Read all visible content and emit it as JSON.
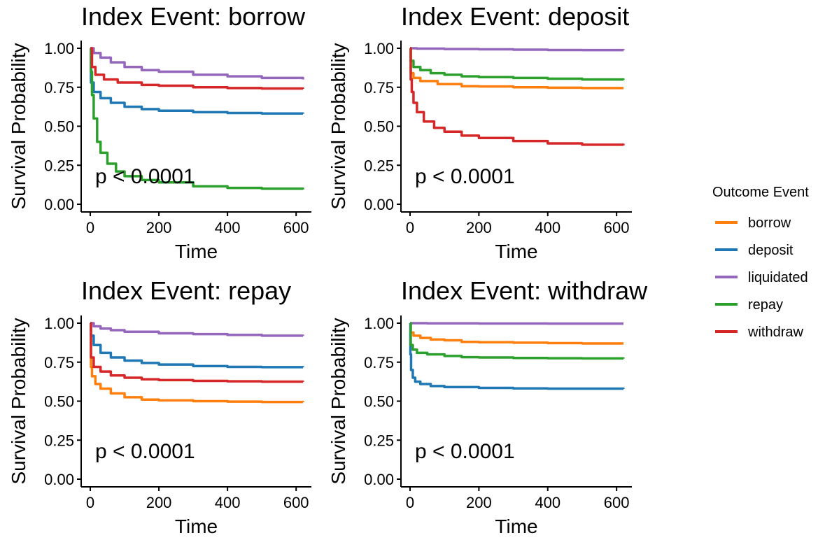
{
  "legend": {
    "title": "Outcome Event",
    "position": "right",
    "items": [
      {
        "label": "borrow",
        "color": "#FF7F0E"
      },
      {
        "label": "deposit",
        "color": "#1F77B4"
      },
      {
        "label": "liquidated",
        "color": "#9467BD"
      },
      {
        "label": "repay",
        "color": "#2CA02C"
      },
      {
        "label": "withdraw",
        "color": "#D62728"
      }
    ]
  },
  "chart_data": [
    {
      "type": "line",
      "title": "Index Event:  borrow",
      "xlabel": "Time",
      "ylabel": "Survival Probability",
      "xlim": [
        0,
        620
      ],
      "ylim": [
        0,
        1
      ],
      "xticks": [
        0,
        200,
        400,
        600
      ],
      "yticks": [
        "0.00",
        "0.25",
        "0.50",
        "0.75",
        "1.00"
      ],
      "annotation": "p < 0.0001",
      "grid": false,
      "series": [
        {
          "name": "deposit",
          "color": "#1F77B4",
          "points": [
            [
              0,
              1.0
            ],
            [
              2,
              0.78
            ],
            [
              10,
              0.72
            ],
            [
              30,
              0.68
            ],
            [
              60,
              0.65
            ],
            [
              100,
              0.625
            ],
            [
              150,
              0.61
            ],
            [
              200,
              0.6
            ],
            [
              300,
              0.59
            ],
            [
              400,
              0.585
            ],
            [
              500,
              0.582
            ],
            [
              620,
              0.58
            ]
          ]
        },
        {
          "name": "liquidated",
          "color": "#9467BD",
          "points": [
            [
              0,
              1.0
            ],
            [
              10,
              0.97
            ],
            [
              30,
              0.94
            ],
            [
              60,
              0.91
            ],
            [
              100,
              0.88
            ],
            [
              150,
              0.86
            ],
            [
              200,
              0.85
            ],
            [
              300,
              0.83
            ],
            [
              400,
              0.82
            ],
            [
              500,
              0.81
            ],
            [
              620,
              0.8
            ]
          ]
        },
        {
          "name": "repay",
          "color": "#2CA02C",
          "points": [
            [
              0,
              1.0
            ],
            [
              2,
              0.85
            ],
            [
              5,
              0.7
            ],
            [
              10,
              0.55
            ],
            [
              20,
              0.4
            ],
            [
              30,
              0.33
            ],
            [
              50,
              0.26
            ],
            [
              75,
              0.21
            ],
            [
              100,
              0.18
            ],
            [
              150,
              0.155
            ],
            [
              200,
              0.14
            ],
            [
              300,
              0.115
            ],
            [
              400,
              0.105
            ],
            [
              500,
              0.1
            ],
            [
              620,
              0.095
            ]
          ]
        },
        {
          "name": "withdraw",
          "color": "#D62728",
          "points": [
            [
              0,
              1.0
            ],
            [
              5,
              0.88
            ],
            [
              15,
              0.83
            ],
            [
              40,
              0.8
            ],
            [
              80,
              0.78
            ],
            [
              150,
              0.765
            ],
            [
              200,
              0.76
            ],
            [
              300,
              0.75
            ],
            [
              400,
              0.745
            ],
            [
              500,
              0.742
            ],
            [
              620,
              0.74
            ]
          ]
        }
      ]
    },
    {
      "type": "line",
      "title": "Index Event:  deposit",
      "xlabel": "Time",
      "ylabel": "Survival Probability",
      "xlim": [
        0,
        620
      ],
      "ylim": [
        0,
        1
      ],
      "xticks": [
        0,
        200,
        400,
        600
      ],
      "yticks": [
        "0.00",
        "0.25",
        "0.50",
        "0.75",
        "1.00"
      ],
      "annotation": "p < 0.0001",
      "grid": false,
      "series": [
        {
          "name": "borrow",
          "color": "#FF7F0E",
          "points": [
            [
              0,
              1.0
            ],
            [
              2,
              0.84
            ],
            [
              10,
              0.81
            ],
            [
              30,
              0.79
            ],
            [
              80,
              0.77
            ],
            [
              150,
              0.757
            ],
            [
              200,
              0.755
            ],
            [
              300,
              0.75
            ],
            [
              400,
              0.747
            ],
            [
              500,
              0.745
            ],
            [
              620,
              0.745
            ]
          ]
        },
        {
          "name": "liquidated",
          "color": "#9467BD",
          "points": [
            [
              0,
              1.0
            ],
            [
              20,
              0.998
            ],
            [
              100,
              0.995
            ],
            [
              200,
              0.993
            ],
            [
              300,
              0.991
            ],
            [
              400,
              0.989
            ],
            [
              500,
              0.988
            ],
            [
              620,
              0.987
            ]
          ]
        },
        {
          "name": "repay",
          "color": "#2CA02C",
          "points": [
            [
              0,
              1.0
            ],
            [
              2,
              0.92
            ],
            [
              10,
              0.88
            ],
            [
              30,
              0.86
            ],
            [
              60,
              0.84
            ],
            [
              100,
              0.83
            ],
            [
              150,
              0.82
            ],
            [
              200,
              0.815
            ],
            [
              300,
              0.81
            ],
            [
              400,
              0.805
            ],
            [
              500,
              0.8
            ],
            [
              620,
              0.797
            ]
          ]
        },
        {
          "name": "withdraw",
          "color": "#D62728",
          "points": [
            [
              0,
              1.0
            ],
            [
              2,
              0.8
            ],
            [
              5,
              0.72
            ],
            [
              10,
              0.65
            ],
            [
              20,
              0.59
            ],
            [
              40,
              0.53
            ],
            [
              70,
              0.49
            ],
            [
              100,
              0.465
            ],
            [
              150,
              0.44
            ],
            [
              200,
              0.425
            ],
            [
              300,
              0.405
            ],
            [
              400,
              0.39
            ],
            [
              500,
              0.382
            ],
            [
              620,
              0.378
            ]
          ]
        }
      ]
    },
    {
      "type": "line",
      "title": "Index Event:  repay",
      "xlabel": "Time",
      "ylabel": "Survival Probability",
      "xlim": [
        0,
        620
      ],
      "ylim": [
        0,
        1
      ],
      "xticks": [
        0,
        200,
        400,
        600
      ],
      "yticks": [
        "0.00",
        "0.25",
        "0.50",
        "0.75",
        "1.00"
      ],
      "annotation": "p < 0.0001",
      "grid": false,
      "series": [
        {
          "name": "borrow",
          "color": "#FF7F0E",
          "points": [
            [
              0,
              1.0
            ],
            [
              2,
              0.72
            ],
            [
              5,
              0.66
            ],
            [
              15,
              0.61
            ],
            [
              30,
              0.58
            ],
            [
              60,
              0.55
            ],
            [
              100,
              0.525
            ],
            [
              150,
              0.51
            ],
            [
              200,
              0.505
            ],
            [
              300,
              0.5
            ],
            [
              400,
              0.497
            ],
            [
              500,
              0.495
            ],
            [
              620,
              0.493
            ]
          ]
        },
        {
          "name": "deposit",
          "color": "#1F77B4",
          "points": [
            [
              0,
              1.0
            ],
            [
              2,
              0.92
            ],
            [
              10,
              0.86
            ],
            [
              30,
              0.81
            ],
            [
              60,
              0.78
            ],
            [
              100,
              0.76
            ],
            [
              150,
              0.745
            ],
            [
              200,
              0.735
            ],
            [
              300,
              0.725
            ],
            [
              400,
              0.72
            ],
            [
              500,
              0.718
            ],
            [
              620,
              0.717
            ]
          ]
        },
        {
          "name": "liquidated",
          "color": "#9467BD",
          "points": [
            [
              0,
              1.0
            ],
            [
              10,
              0.98
            ],
            [
              30,
              0.965
            ],
            [
              60,
              0.955
            ],
            [
              100,
              0.945
            ],
            [
              200,
              0.935
            ],
            [
              300,
              0.93
            ],
            [
              400,
              0.925
            ],
            [
              500,
              0.92
            ],
            [
              620,
              0.918
            ]
          ]
        },
        {
          "name": "withdraw",
          "color": "#D62728",
          "points": [
            [
              0,
              1.0
            ],
            [
              2,
              0.78
            ],
            [
              10,
              0.72
            ],
            [
              30,
              0.69
            ],
            [
              60,
              0.665
            ],
            [
              100,
              0.65
            ],
            [
              150,
              0.64
            ],
            [
              200,
              0.635
            ],
            [
              300,
              0.63
            ],
            [
              400,
              0.627
            ],
            [
              500,
              0.625
            ],
            [
              620,
              0.624
            ]
          ]
        }
      ]
    },
    {
      "type": "line",
      "title": "Index Event:  withdraw",
      "xlabel": "Time",
      "ylabel": "Survival Probability",
      "xlim": [
        0,
        620
      ],
      "ylim": [
        0,
        1
      ],
      "xticks": [
        0,
        200,
        400,
        600
      ],
      "yticks": [
        "0.00",
        "0.25",
        "0.50",
        "0.75",
        "1.00"
      ],
      "annotation": "p < 0.0001",
      "grid": false,
      "series": [
        {
          "name": "borrow",
          "color": "#FF7F0E",
          "points": [
            [
              0,
              1.0
            ],
            [
              2,
              0.94
            ],
            [
              10,
              0.92
            ],
            [
              30,
              0.905
            ],
            [
              60,
              0.895
            ],
            [
              100,
              0.89
            ],
            [
              150,
              0.88
            ],
            [
              200,
              0.878
            ],
            [
              300,
              0.875
            ],
            [
              400,
              0.872
            ],
            [
              500,
              0.87
            ],
            [
              620,
              0.87
            ]
          ]
        },
        {
          "name": "deposit",
          "color": "#1F77B4",
          "points": [
            [
              0,
              1.0
            ],
            [
              1,
              0.8
            ],
            [
              3,
              0.7
            ],
            [
              8,
              0.65
            ],
            [
              15,
              0.625
            ],
            [
              30,
              0.61
            ],
            [
              60,
              0.597
            ],
            [
              100,
              0.59
            ],
            [
              200,
              0.585
            ],
            [
              300,
              0.582
            ],
            [
              400,
              0.58
            ],
            [
              500,
              0.58
            ],
            [
              620,
              0.579
            ]
          ]
        },
        {
          "name": "liquidated",
          "color": "#9467BD",
          "points": [
            [
              0,
              1.0
            ],
            [
              50,
              0.999
            ],
            [
              200,
              0.998
            ],
            [
              400,
              0.997
            ],
            [
              620,
              0.997
            ]
          ]
        },
        {
          "name": "repay",
          "color": "#2CA02C",
          "points": [
            [
              0,
              1.0
            ],
            [
              2,
              0.86
            ],
            [
              8,
              0.83
            ],
            [
              20,
              0.81
            ],
            [
              50,
              0.8
            ],
            [
              100,
              0.79
            ],
            [
              150,
              0.782
            ],
            [
              200,
              0.78
            ],
            [
              300,
              0.777
            ],
            [
              400,
              0.775
            ],
            [
              500,
              0.774
            ],
            [
              620,
              0.773
            ]
          ]
        }
      ]
    }
  ]
}
